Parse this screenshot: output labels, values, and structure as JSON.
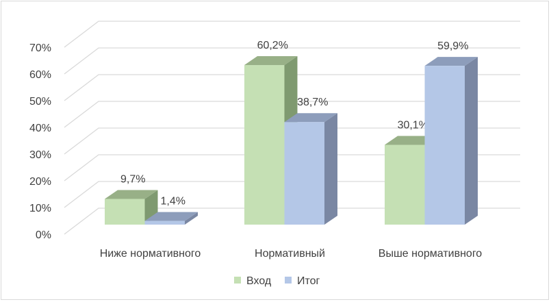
{
  "chart_data": {
    "type": "bar",
    "style": "3d-clustered-column",
    "categories": [
      "Ниже нормативного",
      "Нормативный",
      "Выше нормативного"
    ],
    "series": [
      {
        "name": "Вход",
        "values": [
          9.7,
          60.2,
          30.1
        ],
        "labels": [
          "9,7%",
          "60,2%",
          "30,1%"
        ],
        "color": "#c5e0b4"
      },
      {
        "name": "Итог",
        "values": [
          1.4,
          38.7,
          59.9
        ],
        "labels": [
          "1,4%",
          "38,7%",
          "59,9%"
        ],
        "color": "#b4c7e7"
      }
    ],
    "y_ticks": [
      "0%",
      "10%",
      "20%",
      "30%",
      "40%",
      "50%",
      "60%",
      "70%"
    ],
    "ylim": [
      0,
      70
    ],
    "unit": "%",
    "grid": true,
    "legend": "bottom"
  }
}
